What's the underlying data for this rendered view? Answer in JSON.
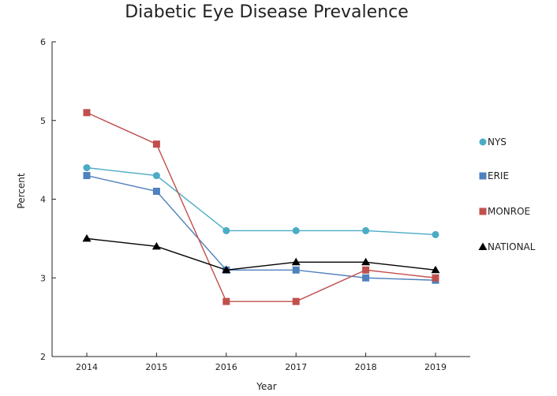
{
  "chart_data": {
    "type": "line",
    "title": "Diabetic Eye Disease Prevalence",
    "xlabel": "Year",
    "ylabel": "Percent",
    "x": [
      "2014",
      "2015",
      "2016",
      "2017",
      "2018",
      "2019"
    ],
    "ylim": [
      2,
      6
    ],
    "yticks": [
      "2",
      "3",
      "4",
      "5",
      "6"
    ],
    "grid": false,
    "legend_position": "right",
    "series": [
      {
        "name": "NYS",
        "color": "#4bacc6",
        "marker": "circle",
        "values": [
          4.4,
          4.3,
          3.6,
          3.6,
          3.6,
          3.55
        ]
      },
      {
        "name": "ERIE",
        "color": "#4f81bd",
        "marker": "square",
        "values": [
          4.3,
          4.1,
          3.1,
          3.1,
          3.0,
          2.97
        ]
      },
      {
        "name": "MONROE",
        "color": "#c0504d",
        "marker": "square",
        "values": [
          5.1,
          4.7,
          2.7,
          2.7,
          3.1,
          3.0
        ]
      },
      {
        "name": "NATIONAL",
        "color": "#000000",
        "marker": "triangle",
        "values": [
          3.5,
          3.4,
          3.1,
          3.2,
          3.2,
          3.1
        ]
      }
    ]
  }
}
